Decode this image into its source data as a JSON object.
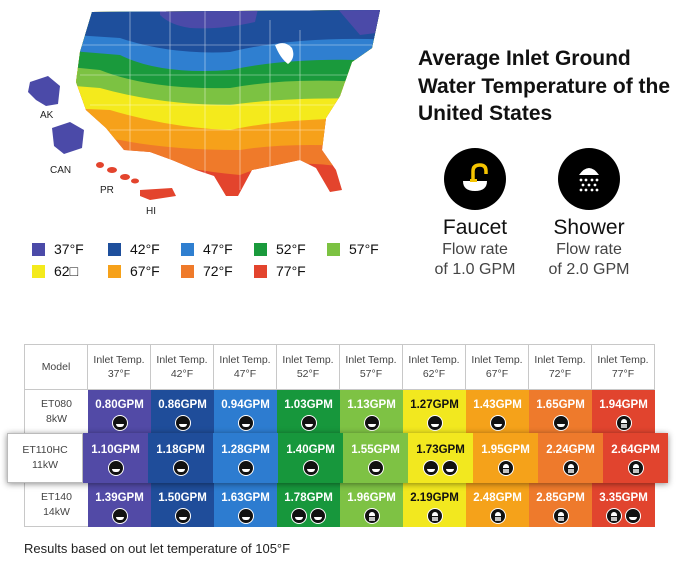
{
  "title": "Average Inlet Ground Water Temperature of the United States",
  "map_labels": {
    "ak": "AK",
    "can": "CAN",
    "pr": "PR",
    "hi": "HI"
  },
  "faucet": {
    "name": "Faucet",
    "line1": "Flow rate",
    "line2": "of 1.0 GPM"
  },
  "shower": {
    "name": "Shower",
    "line1": "Flow rate",
    "line2": "of 2.0 GPM"
  },
  "legend": [
    {
      "label": "37°F",
      "color": "#4b4aa8"
    },
    {
      "label": "42°F",
      "color": "#1e4f9c"
    },
    {
      "label": "47°F",
      "color": "#2f7fd0"
    },
    {
      "label": "52°F",
      "color": "#1a9a3c"
    },
    {
      "label": "57°F",
      "color": "#7cc242"
    },
    {
      "label": "62□",
      "color": "#f4ea1c"
    },
    {
      "label": "67°F",
      "color": "#f6a11a"
    },
    {
      "label": "72°F",
      "color": "#ef7a2a"
    },
    {
      "label": "77°F",
      "color": "#e3442d"
    }
  ],
  "table": {
    "model_header": "Model",
    "columns": [
      {
        "l1": "Inlet Temp.",
        "l2": "37°F",
        "color": "#524aa6"
      },
      {
        "l1": "Inlet Temp.",
        "l2": "42°F",
        "color": "#1f4d9a"
      },
      {
        "l1": "Inlet Temp.",
        "l2": "47°F",
        "color": "#2d7cd0"
      },
      {
        "l1": "Inlet Temp.",
        "l2": "52°F",
        "color": "#17973c"
      },
      {
        "l1": "Inlet Temp.",
        "l2": "57°F",
        "color": "#7ec244"
      },
      {
        "l1": "Inlet Temp.",
        "l2": "62°F",
        "color": "#f2e81f"
      },
      {
        "l1": "Inlet Temp.",
        "l2": "67°F",
        "color": "#f5a21a"
      },
      {
        "l1": "Inlet Temp.",
        "l2": "72°F",
        "color": "#ee7a2c"
      },
      {
        "l1": "Inlet Temp.",
        "l2": "77°F",
        "color": "#e1442e"
      }
    ],
    "rows": [
      {
        "model1": "ET080",
        "model2": "8kW",
        "values": [
          "0.80GPM",
          "0.86GPM",
          "0.94GPM",
          "1.03GPM",
          "1.13GPM",
          "1.27GPM",
          "1.43GPM",
          "1.65GPM",
          "1.94GPM"
        ],
        "icons": [
          [
            "faucet"
          ],
          [
            "faucet"
          ],
          [
            "faucet"
          ],
          [
            "faucet"
          ],
          [
            "faucet"
          ],
          [
            "faucet"
          ],
          [
            "faucet"
          ],
          [
            "faucet"
          ],
          [
            "shower"
          ]
        ]
      },
      {
        "model1": "ET110HC",
        "model2": "11kW",
        "values": [
          "1.10GPM",
          "1.18GPM",
          "1.28GPM",
          "1.40GPM",
          "1.55GPM",
          "1.73GPM",
          "1.95GPM",
          "2.24GPM",
          "2.64GPM"
        ],
        "icons": [
          [
            "faucet"
          ],
          [
            "faucet"
          ],
          [
            "faucet"
          ],
          [
            "faucet"
          ],
          [
            "faucet"
          ],
          [
            "faucet",
            "faucet"
          ],
          [
            "shower"
          ],
          [
            "shower"
          ],
          [
            "shower"
          ]
        ]
      },
      {
        "model1": "ET140",
        "model2": "14kW",
        "values": [
          "1.39GPM",
          "1.50GPM",
          "1.63GPM",
          "1.78GPM",
          "1.96GPM",
          "2.19GPM",
          "2.48GPM",
          "2.85GPM",
          "3.35GPM"
        ],
        "icons": [
          [
            "faucet"
          ],
          [
            "faucet"
          ],
          [
            "faucet"
          ],
          [
            "faucet",
            "faucet"
          ],
          [
            "shower"
          ],
          [
            "shower"
          ],
          [
            "shower"
          ],
          [
            "shower"
          ],
          [
            "shower",
            "faucet"
          ]
        ]
      }
    ]
  },
  "footnote": "Results based on out let temperature of 105°F"
}
